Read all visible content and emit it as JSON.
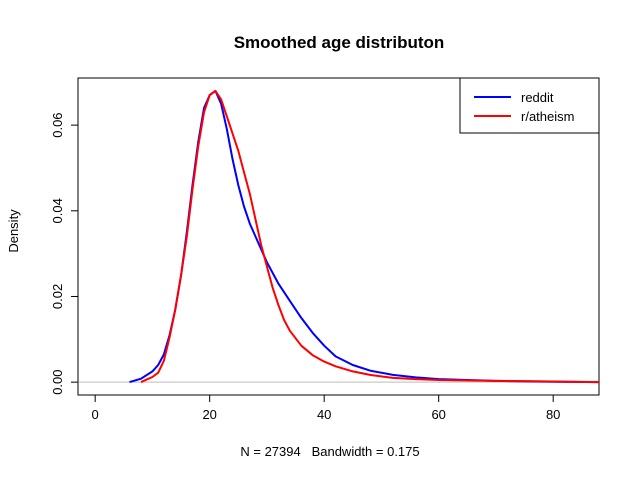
{
  "chart_data": {
    "type": "line",
    "title": "Smoothed age distributon",
    "xlabel": "N = 27394   Bandwidth = 0.175",
    "ylabel": "Density",
    "xlim": [
      -3,
      88
    ],
    "ylim": [
      -0.003,
      0.071
    ],
    "xticks": [
      0,
      20,
      40,
      60,
      80
    ],
    "yticks": [
      0.0,
      0.02,
      0.04,
      0.06
    ],
    "ytick_labels": [
      "0.00",
      "0.02",
      "0.04",
      "0.06"
    ],
    "zero_line": true,
    "grid": false,
    "legend_position": "top-right",
    "series": [
      {
        "name": "reddit",
        "color": "#0000ff",
        "x": [
          6,
          8,
          10,
          11,
          12,
          13,
          14,
          15,
          16,
          17,
          18,
          19,
          20,
          21,
          22,
          23,
          24,
          25,
          26,
          27,
          28,
          29,
          30,
          32,
          34,
          36,
          38,
          40,
          42,
          45,
          48,
          52,
          56,
          60,
          70,
          80,
          88
        ],
        "y": [
          0,
          0.0008,
          0.0025,
          0.004,
          0.0065,
          0.011,
          0.017,
          0.025,
          0.035,
          0.046,
          0.056,
          0.064,
          0.067,
          0.068,
          0.065,
          0.059,
          0.052,
          0.046,
          0.041,
          0.037,
          0.034,
          0.031,
          0.028,
          0.023,
          0.019,
          0.015,
          0.0115,
          0.0085,
          0.006,
          0.004,
          0.0027,
          0.0017,
          0.0011,
          0.0007,
          0.0003,
          0.0001,
          0
        ]
      },
      {
        "name": "r/atheism",
        "color": "#ff0000",
        "x": [
          8,
          10,
          11,
          12,
          13,
          14,
          15,
          16,
          17,
          18,
          19,
          20,
          21,
          22,
          23,
          24,
          25,
          26,
          27,
          28,
          29,
          30,
          31,
          32,
          33,
          34,
          36,
          38,
          40,
          42,
          45,
          48,
          52,
          56,
          60,
          70,
          77,
          88
        ],
        "y": [
          0,
          0.0012,
          0.0022,
          0.005,
          0.0105,
          0.017,
          0.025,
          0.034,
          0.045,
          0.055,
          0.063,
          0.067,
          0.068,
          0.066,
          0.062,
          0.058,
          0.054,
          0.049,
          0.044,
          0.038,
          0.032,
          0.027,
          0.022,
          0.018,
          0.0145,
          0.012,
          0.0085,
          0.0063,
          0.0048,
          0.0037,
          0.0025,
          0.0017,
          0.001,
          0.0007,
          0.0005,
          0.0003,
          0.0002,
          0
        ]
      }
    ]
  }
}
